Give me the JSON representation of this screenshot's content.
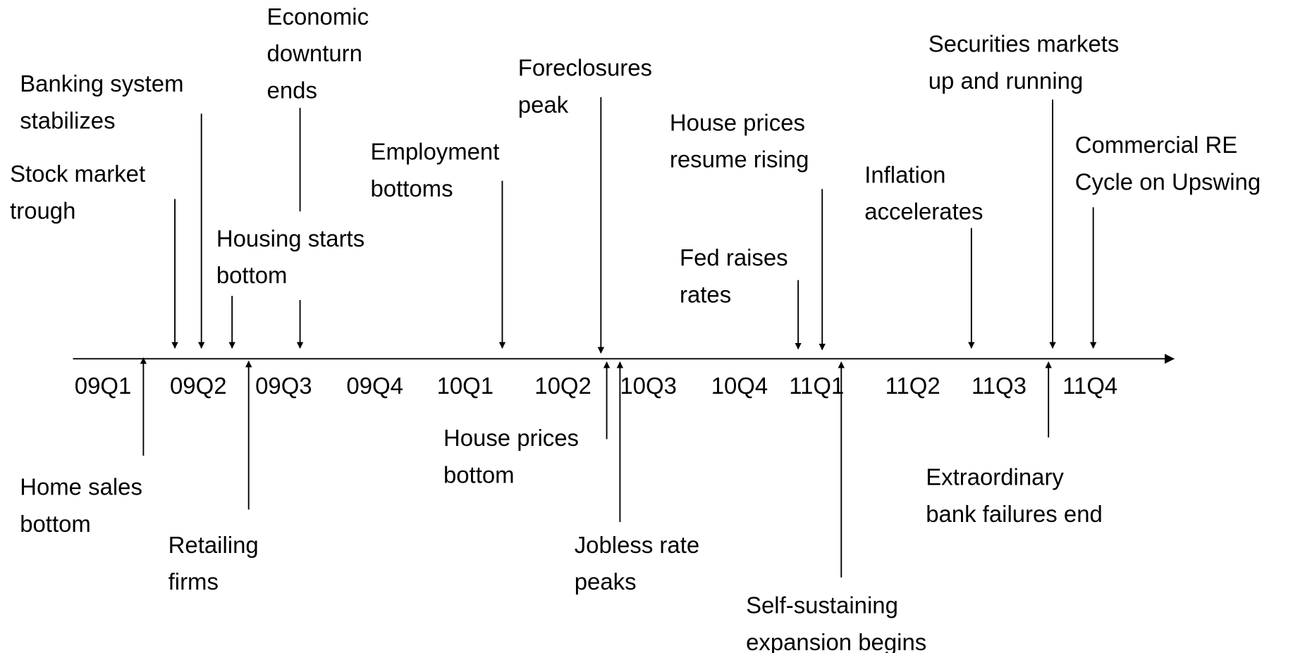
{
  "quarters": [
    "09Q1",
    "09Q2",
    "09Q3",
    "09Q4",
    "10Q1",
    "10Q2",
    "10Q3",
    "10Q4",
    "11Q1",
    "11Q2",
    "11Q3",
    "11Q4"
  ],
  "events": [
    {
      "lines": [
        "Stock market",
        "trough"
      ]
    },
    {
      "lines": [
        "Banking system",
        "stabilizes"
      ]
    },
    {
      "lines": [
        "Housing starts",
        "bottom"
      ]
    },
    {
      "lines": [
        "Economic",
        "downturn",
        "ends"
      ]
    },
    {
      "lines": [
        "Employment",
        "bottoms"
      ]
    },
    {
      "lines": [
        "Foreclosures",
        "peak"
      ]
    },
    {
      "lines": [
        "House prices",
        "resume rising"
      ]
    },
    {
      "lines": [
        "Fed raises",
        "rates"
      ]
    },
    {
      "lines": [
        "Inflation",
        "accelerates"
      ]
    },
    {
      "lines": [
        "Securities markets",
        "up and running"
      ]
    },
    {
      "lines": [
        "Commercial RE",
        "Cycle on Upswing"
      ]
    },
    {
      "lines": [
        "Home sales",
        "bottom"
      ]
    },
    {
      "lines": [
        "Retailing",
        "firms"
      ]
    },
    {
      "lines": [
        "House prices",
        "bottom"
      ]
    },
    {
      "lines": [
        "Jobless rate",
        "peaks"
      ]
    },
    {
      "lines": [
        "Self-sustaining",
        "expansion begins"
      ]
    },
    {
      "lines": [
        "Extraordinary",
        "bank failures end"
      ]
    }
  ]
}
